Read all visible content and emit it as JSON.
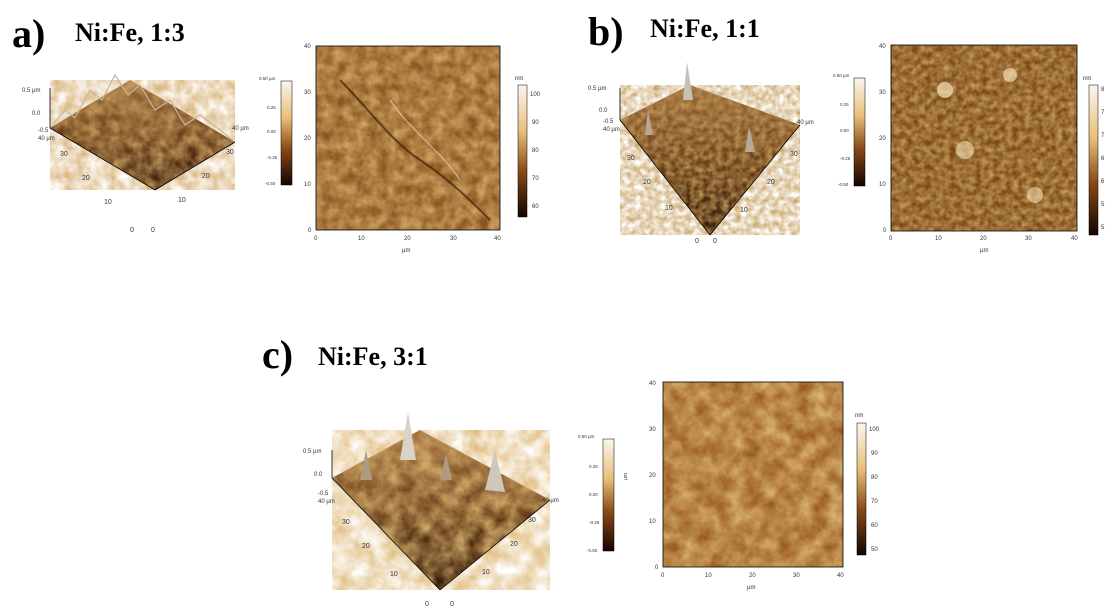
{
  "colors": {
    "afm_dark": "#3a1a08",
    "afm_mid": "#b5702a",
    "afm_light": "#f0d9a8",
    "afm_white": "#fbf6ee",
    "accent": "#000000"
  },
  "panels": [
    {
      "letter": "a)",
      "title": "Ni:Fe, 1:3",
      "surface": {
        "z_top": "0.5 µm",
        "z_mid": "0.0",
        "z_bot": "-0.5",
        "y_end": "40 µm",
        "x_end": "40 µm",
        "y_ticks": [
          "30",
          "20",
          "10",
          "0"
        ],
        "x_ticks": [
          "0",
          "10",
          "20",
          "30"
        ]
      },
      "phase_bar": {
        "top": "0.50 µm",
        "ticks": [
          "0.25",
          "0.00",
          "-0.25",
          "-0.50"
        ]
      },
      "height_map": {
        "y_ticks": [
          "40",
          "30",
          "20",
          "10",
          "0"
        ],
        "x_ticks": [
          "0",
          "10",
          "20",
          "30",
          "40"
        ],
        "x_unit": "µm",
        "bar_unit": "nm",
        "bar_ticks": [
          "100",
          "90",
          "80",
          "70",
          "60"
        ]
      }
    },
    {
      "letter": "b)",
      "title": "Ni:Fe, 1:1",
      "surface": {
        "z_top": "0.5 µm",
        "z_mid": "0.0",
        "z_bot": "-0.5",
        "y_end": "40 µm",
        "x_end": "40 µm",
        "y_ticks": [
          "30",
          "20",
          "10",
          "0"
        ],
        "x_ticks": [
          "0",
          "10",
          "20",
          "30"
        ]
      },
      "phase_bar": {
        "top": "0.50 µm",
        "ticks": [
          "0.25",
          "0.00",
          "-0.25",
          "-0.50"
        ]
      },
      "height_map": {
        "y_ticks": [
          "40",
          "30",
          "20",
          "10",
          "0"
        ],
        "x_ticks": [
          "0",
          "10",
          "20",
          "30",
          "40"
        ],
        "x_unit": "µm",
        "bar_unit": "nm",
        "bar_ticks": [
          "8",
          "7",
          "7",
          "6",
          "6",
          "5",
          "5"
        ]
      }
    },
    {
      "letter": "c)",
      "title": "Ni:Fe, 3:1",
      "surface": {
        "z_top": "0.5 µm",
        "z_mid": "0.0",
        "z_bot": "-0.5",
        "y_end": "40 µm",
        "x_end": "40 µm",
        "y_ticks": [
          "30",
          "20",
          "10",
          "0"
        ],
        "x_ticks": [
          "0",
          "10",
          "20",
          "30"
        ]
      },
      "phase_bar": {
        "top": "0.50 µm",
        "ticks": [
          "0.25",
          "0.00",
          "-0.25",
          "-0.50"
        ],
        "side_unit": "µm"
      },
      "height_map": {
        "y_ticks": [
          "40",
          "30",
          "20",
          "10",
          "0"
        ],
        "x_ticks": [
          "0",
          "10",
          "20",
          "30",
          "40"
        ],
        "x_unit": "µm",
        "bar_unit": "nm",
        "bar_ticks": [
          "100",
          "90",
          "80",
          "70",
          "60",
          "50"
        ]
      }
    }
  ]
}
